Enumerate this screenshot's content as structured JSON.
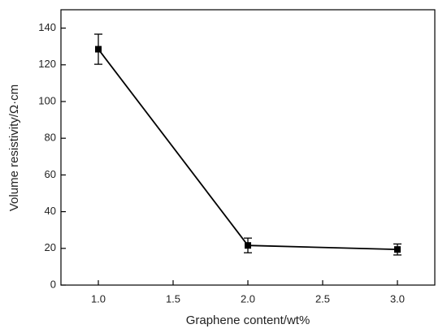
{
  "chart_data": {
    "type": "line",
    "x_label": "Graphene content/wt%",
    "y_label": "Volume resistivity/Ω·cm",
    "x": [
      1.0,
      2.0,
      3.0
    ],
    "values": [
      128.5,
      21.6,
      19.4
    ],
    "errors": [
      8.2,
      4.0,
      3.0
    ],
    "color": "#000000",
    "xlim": [
      0.75,
      3.25
    ],
    "xticks": [
      {
        "value": 1.0,
        "label": "1.0"
      },
      {
        "value": 1.5,
        "label": "1.5"
      },
      {
        "value": 2.0,
        "label": "2.0"
      },
      {
        "value": 2.5,
        "label": "2.5"
      },
      {
        "value": 3.0,
        "label": "3.0"
      }
    ],
    "ylim": [
      0,
      150
    ],
    "yticks": [
      0,
      20,
      40,
      60,
      80,
      100,
      120,
      140
    ]
  }
}
